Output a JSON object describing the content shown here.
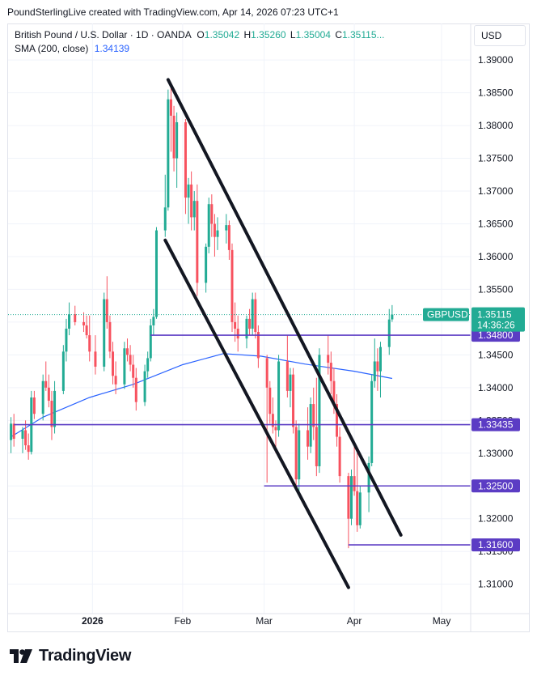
{
  "header": {
    "text": "PoundSterlingLive created with TradingView.com, Apr 14, 2026 07:23 UTC+1"
  },
  "legend": {
    "title": "British Pound / U.S. Dollar · 1D · OANDA",
    "o_label": "O",
    "o_value": "1.35042",
    "h_label": "H",
    "h_value": "1.35260",
    "l_label": "L",
    "l_value": "1.35004",
    "c_label": "C",
    "c_value": "1.35115...",
    "sma_label": "SMA (200, close)",
    "sma_value": "1.34139"
  },
  "currency_button": "USD",
  "footer": {
    "brand": "TradingView"
  },
  "colors": {
    "up": "#22ab94",
    "down": "#f7525f",
    "sma": "#2962ff",
    "level_line": "#5b3cc4",
    "trend_line": "#131722",
    "price_badge": "#22ab94"
  },
  "chart_data": {
    "type": "candlestick",
    "symbol_label": "GBPUSD",
    "last_price": "1.35115",
    "countdown": "14:36:26",
    "ylim": [
      1.3065,
      1.3915
    ],
    "y_ticks": [
      "1.39000",
      "1.38500",
      "1.38000",
      "1.37500",
      "1.37000",
      "1.36500",
      "1.36000",
      "1.35500",
      "1.35000",
      "1.34500",
      "1.34000",
      "1.33500",
      "1.33000",
      "1.32500",
      "1.32000",
      "1.31500",
      "1.31000"
    ],
    "x_ticks": [
      {
        "label": "2026",
        "date": "2026-01-01",
        "bold": true
      },
      {
        "label": "Feb",
        "date": "2026-02-01",
        "bold": false
      },
      {
        "label": "Mar",
        "date": "2026-03-01",
        "bold": false
      },
      {
        "label": "Apr",
        "date": "2026-04-01",
        "bold": false
      },
      {
        "label": "May",
        "date": "2026-05-01",
        "bold": false
      }
    ],
    "xlim": [
      "2025-12-03",
      "2026-05-11"
    ],
    "horizontal_levels": [
      {
        "price": 1.348,
        "label": "1.34800",
        "from": "2026-01-21"
      },
      {
        "price": 1.33435,
        "label": "1.33435",
        "from": "2025-12-05"
      },
      {
        "price": 1.325,
        "label": "1.32500",
        "from": "2026-03-01"
      },
      {
        "price": 1.316,
        "label": "1.31600",
        "from": "2026-03-30"
      }
    ],
    "trend_lines": [
      {
        "start": [
          "2026-01-27",
          1.387
        ],
        "end": [
          "2026-04-17",
          1.3175
        ]
      },
      {
        "start": [
          "2026-01-26",
          1.3625
        ],
        "end": [
          "2026-03-30",
          1.3095
        ]
      }
    ],
    "sma": [
      [
        "2025-12-04",
        1.3325
      ],
      [
        "2025-12-15",
        1.3355
      ],
      [
        "2025-12-31",
        1.3385
      ],
      [
        "2026-01-15",
        1.3405
      ],
      [
        "2026-02-01",
        1.3435
      ],
      [
        "2026-02-15",
        1.3452
      ],
      [
        "2026-02-28",
        1.3448
      ],
      [
        "2026-03-15",
        1.3436
      ],
      [
        "2026-04-01",
        1.3425
      ],
      [
        "2026-04-14",
        1.3414
      ]
    ],
    "candles": [
      [
        "2025-12-04",
        1.332,
        1.3355,
        1.33,
        1.3345
      ],
      [
        "2025-12-05",
        1.3345,
        1.336,
        1.331,
        1.3322
      ],
      [
        "2025-12-08",
        1.3322,
        1.334,
        1.33,
        1.3335
      ],
      [
        "2025-12-09",
        1.3335,
        1.335,
        1.3305,
        1.3312
      ],
      [
        "2025-12-10",
        1.3312,
        1.333,
        1.329,
        1.3302
      ],
      [
        "2025-12-11",
        1.3302,
        1.3395,
        1.3298,
        1.3385
      ],
      [
        "2025-12-12",
        1.3385,
        1.3395,
        1.3352,
        1.336
      ],
      [
        "2025-12-15",
        1.336,
        1.342,
        1.335,
        1.341
      ],
      [
        "2025-12-16",
        1.341,
        1.344,
        1.3395,
        1.34
      ],
      [
        "2025-12-17",
        1.34,
        1.342,
        1.337,
        1.338
      ],
      [
        "2025-12-18",
        1.338,
        1.3395,
        1.332,
        1.334
      ],
      [
        "2025-12-19",
        1.334,
        1.341,
        1.333,
        1.3395
      ],
      [
        "2025-12-22",
        1.3395,
        1.3465,
        1.339,
        1.3455
      ],
      [
        "2025-12-23",
        1.3455,
        1.3505,
        1.344,
        1.349
      ],
      [
        "2025-12-24",
        1.349,
        1.353,
        1.348,
        1.3512
      ],
      [
        "2025-12-26",
        1.3512,
        1.3525,
        1.3495,
        1.35
      ],
      [
        "2025-12-29",
        1.35,
        1.3515,
        1.3485,
        1.3495
      ],
      [
        "2025-12-30",
        1.3495,
        1.351,
        1.3475,
        1.348
      ],
      [
        "2025-12-31",
        1.348,
        1.351,
        1.344,
        1.3455
      ],
      [
        "2026-01-02",
        1.3455,
        1.348,
        1.342,
        1.3432
      ],
      [
        "2026-01-05",
        1.3432,
        1.3545,
        1.3425,
        1.3535
      ],
      [
        "2026-01-06",
        1.3535,
        1.357,
        1.349,
        1.35
      ],
      [
        "2026-01-07",
        1.35,
        1.351,
        1.3445,
        1.3455
      ],
      [
        "2026-01-08",
        1.3455,
        1.347,
        1.3405,
        1.3418
      ],
      [
        "2026-01-09",
        1.3418,
        1.344,
        1.339,
        1.3405
      ],
      [
        "2026-01-12",
        1.3405,
        1.347,
        1.3398,
        1.346
      ],
      [
        "2026-01-13",
        1.346,
        1.3475,
        1.344,
        1.345
      ],
      [
        "2026-01-14",
        1.345,
        1.3465,
        1.3425,
        1.3435
      ],
      [
        "2026-01-15",
        1.3435,
        1.345,
        1.34,
        1.3415
      ],
      [
        "2026-01-16",
        1.3415,
        1.343,
        1.3365,
        1.3378
      ],
      [
        "2026-01-19",
        1.3378,
        1.3435,
        1.3372,
        1.3425
      ],
      [
        "2026-01-20",
        1.3425,
        1.3455,
        1.3415,
        1.3445
      ],
      [
        "2026-01-21",
        1.3445,
        1.3505,
        1.344,
        1.3495
      ],
      [
        "2026-01-22",
        1.3495,
        1.352,
        1.348,
        1.3508
      ],
      [
        "2026-01-23",
        1.3508,
        1.3645,
        1.3505,
        1.364
      ],
      [
        "2026-01-26",
        1.364,
        1.3725,
        1.363,
        1.3675
      ],
      [
        "2026-01-27",
        1.3675,
        1.3855,
        1.367,
        1.384
      ],
      [
        "2026-01-28",
        1.384,
        1.386,
        1.376,
        1.3815
      ],
      [
        "2026-01-29",
        1.3815,
        1.383,
        1.373,
        1.375
      ],
      [
        "2026-01-30",
        1.375,
        1.382,
        1.3705,
        1.3805
      ],
      [
        "2026-02-02",
        1.3805,
        1.381,
        1.3665,
        1.369
      ],
      [
        "2026-02-03",
        1.369,
        1.372,
        1.365,
        1.371
      ],
      [
        "2026-02-04",
        1.371,
        1.373,
        1.364,
        1.366
      ],
      [
        "2026-02-05",
        1.366,
        1.37,
        1.364,
        1.3685
      ],
      [
        "2026-02-06",
        1.3685,
        1.371,
        1.354,
        1.356
      ],
      [
        "2026-02-09",
        1.356,
        1.362,
        1.3545,
        1.3615
      ],
      [
        "2026-02-10",
        1.3615,
        1.369,
        1.3605,
        1.368
      ],
      [
        "2026-02-11",
        1.368,
        1.3695,
        1.363,
        1.365
      ],
      [
        "2026-02-12",
        1.365,
        1.3665,
        1.36,
        1.363
      ],
      [
        "2026-02-13",
        1.363,
        1.366,
        1.361,
        1.364
      ],
      [
        "2026-02-16",
        1.364,
        1.3665,
        1.362,
        1.3648
      ],
      [
        "2026-02-17",
        1.3648,
        1.3655,
        1.3595,
        1.361
      ],
      [
        "2026-02-18",
        1.361,
        1.362,
        1.3485,
        1.35
      ],
      [
        "2026-02-19",
        1.35,
        1.353,
        1.347,
        1.349
      ],
      [
        "2026-02-20",
        1.349,
        1.351,
        1.3455,
        1.3475
      ],
      [
        "2026-02-23",
        1.3475,
        1.351,
        1.346,
        1.3505
      ],
      [
        "2026-02-24",
        1.3505,
        1.352,
        1.348,
        1.349
      ],
      [
        "2026-02-25",
        1.349,
        1.3545,
        1.348,
        1.3535
      ],
      [
        "2026-02-26",
        1.3535,
        1.3545,
        1.3475,
        1.3485
      ],
      [
        "2026-02-27",
        1.3485,
        1.3495,
        1.343,
        1.3445
      ],
      [
        "2026-03-02",
        1.3445,
        1.345,
        1.3255,
        1.34
      ],
      [
        "2026-03-03",
        1.34,
        1.341,
        1.3345,
        1.336
      ],
      [
        "2026-03-04",
        1.336,
        1.3385,
        1.333,
        1.334
      ],
      [
        "2026-03-05",
        1.334,
        1.335,
        1.33,
        1.3335
      ],
      [
        "2026-03-06",
        1.3335,
        1.345,
        1.3325,
        1.344
      ],
      [
        "2026-03-09",
        1.344,
        1.348,
        1.3385,
        1.3395
      ],
      [
        "2026-03-10",
        1.3395,
        1.343,
        1.337,
        1.342
      ],
      [
        "2026-03-11",
        1.342,
        1.343,
        1.333,
        1.334
      ],
      [
        "2026-03-12",
        1.334,
        1.335,
        1.3245,
        1.326
      ],
      [
        "2026-03-13",
        1.326,
        1.3345,
        1.3235,
        1.3335
      ],
      [
        "2026-03-16",
        1.3335,
        1.337,
        1.329,
        1.331
      ],
      [
        "2026-03-17",
        1.331,
        1.3385,
        1.33,
        1.3375
      ],
      [
        "2026-03-18",
        1.3375,
        1.34,
        1.332,
        1.334
      ],
      [
        "2026-03-19",
        1.334,
        1.3415,
        1.3265,
        1.328
      ],
      [
        "2026-03-20",
        1.328,
        1.346,
        1.327,
        1.345
      ],
      [
        "2026-03-23",
        1.345,
        1.348,
        1.342,
        1.3438
      ],
      [
        "2026-03-24",
        1.3438,
        1.3455,
        1.339,
        1.341
      ],
      [
        "2026-03-25",
        1.341,
        1.343,
        1.336,
        1.3375
      ],
      [
        "2026-03-26",
        1.3375,
        1.339,
        1.331,
        1.3325
      ],
      [
        "2026-03-27",
        1.3325,
        1.334,
        1.3255,
        1.3265
      ],
      [
        "2026-03-30",
        1.3265,
        1.327,
        1.3155,
        1.32
      ],
      [
        "2026-03-31",
        1.32,
        1.3275,
        1.319,
        1.3265
      ],
      [
        "2026-04-01",
        1.3265,
        1.331,
        1.3235,
        1.3242
      ],
      [
        "2026-04-02",
        1.3242,
        1.33,
        1.318,
        1.319
      ],
      [
        "2026-04-03",
        1.319,
        1.325,
        1.3185,
        1.324
      ],
      [
        "2026-04-06",
        1.324,
        1.3295,
        1.321,
        1.3285
      ],
      [
        "2026-04-07",
        1.3285,
        1.342,
        1.328,
        1.341
      ],
      [
        "2026-04-08",
        1.341,
        1.3475,
        1.34,
        1.344
      ],
      [
        "2026-04-09",
        1.344,
        1.346,
        1.3395,
        1.3425
      ],
      [
        "2026-04-10",
        1.3425,
        1.347,
        1.3385,
        1.3462
      ],
      [
        "2026-04-13",
        1.3462,
        1.352,
        1.345,
        1.3504
      ],
      [
        "2026-04-14",
        1.35042,
        1.3526,
        1.35004,
        1.35115
      ]
    ]
  }
}
